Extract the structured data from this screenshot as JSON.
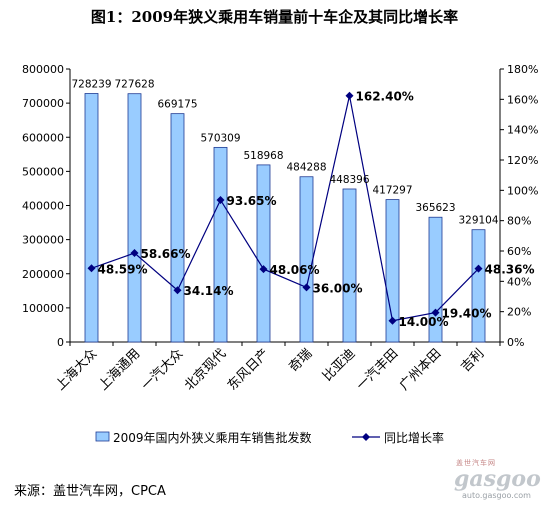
{
  "title": "图1：2009年狭义乘用车销量前十车企及其同比增长率",
  "source": "来源：盖世汽车网，CPCA",
  "watermark": {
    "cn": "盖世汽车网",
    "logo": "gasgoo",
    "url": "auto.gasgoo.com"
  },
  "colors": {
    "bar_fill": "#99ccff",
    "bar_stroke": "#1f3a93",
    "line": "#000080",
    "marker": "#000080"
  },
  "chart_data": {
    "type": "bar",
    "categories": [
      "上海大众",
      "上海通用",
      "一汽大众",
      "北京现代",
      "东风日产",
      "奇瑞",
      "比亚迪",
      "一汽丰田",
      "广州本田",
      "吉利"
    ],
    "series": [
      {
        "name": "2009年国内外狭义乘用车销售批发数",
        "type": "bar",
        "axis": "left",
        "values": [
          728239,
          727628,
          669175,
          570309,
          518968,
          484288,
          448396,
          417297,
          365623,
          329104
        ],
        "labels": [
          "728239",
          "727628",
          "669175",
          "570309",
          "518968",
          "484288",
          "448396",
          "417297",
          "365623",
          "329104"
        ]
      },
      {
        "name": "同比增长率",
        "type": "line",
        "axis": "right",
        "values": [
          48.59,
          58.66,
          34.14,
          93.65,
          48.06,
          36.0,
          162.4,
          14.0,
          19.4,
          48.36
        ],
        "labels": [
          "48.59%",
          "58.66%",
          "34.14%",
          "93.65%",
          "48.06%",
          "36.00%",
          "162.40%",
          "14.00%",
          "19.40%",
          "48.36%"
        ]
      }
    ],
    "y_left": {
      "min": 0,
      "max": 800000,
      "ticks": [
        "0",
        "100000",
        "200000",
        "300000",
        "400000",
        "500000",
        "600000",
        "700000",
        "800000"
      ]
    },
    "y_right": {
      "min": 0,
      "max": 180,
      "ticks": [
        "0%",
        "20%",
        "40%",
        "60%",
        "80%",
        "100%",
        "120%",
        "140%",
        "160%",
        "180%"
      ]
    },
    "grid": false,
    "legend": "bottom"
  }
}
